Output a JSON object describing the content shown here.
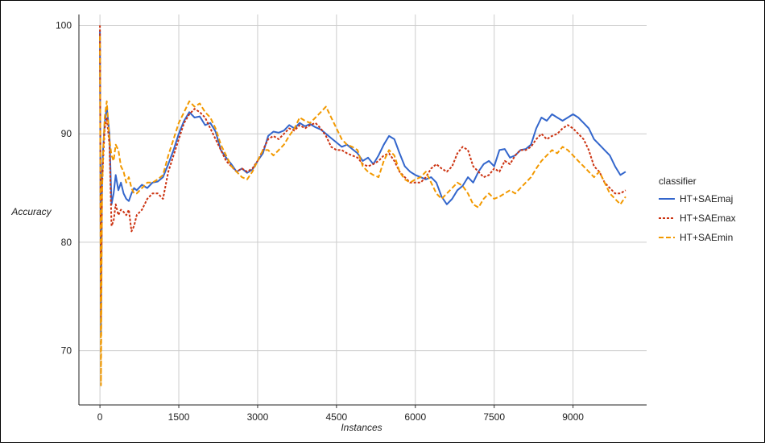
{
  "chart_data": {
    "type": "line",
    "title": "",
    "xlabel": "Instances",
    "ylabel": "Accuracy",
    "xlim": [
      -400,
      10400
    ],
    "ylim": [
      65,
      101
    ],
    "xticks": [
      0,
      1500,
      3000,
      4500,
      6000,
      7500,
      9000
    ],
    "yticks": [
      70,
      80,
      90,
      100
    ],
    "grid": true,
    "legend": {
      "title": "classifier",
      "position": "right"
    },
    "series": [
      {
        "name": "HT+SAEmaj",
        "color": "#3366cc",
        "dash": "solid",
        "x": [
          0,
          20,
          40,
          60,
          90,
          130,
          180,
          220,
          260,
          300,
          350,
          400,
          450,
          500,
          550,
          600,
          650,
          700,
          800,
          900,
          1000,
          1100,
          1200,
          1300,
          1400,
          1500,
          1600,
          1700,
          1800,
          1900,
          2000,
          2100,
          2200,
          2300,
          2400,
          2500,
          2600,
          2700,
          2800,
          2900,
          3000,
          3100,
          3200,
          3300,
          3400,
          3500,
          3600,
          3700,
          3800,
          3900,
          4000,
          4100,
          4200,
          4300,
          4400,
          4500,
          4600,
          4700,
          4800,
          4900,
          5000,
          5100,
          5200,
          5300,
          5400,
          5500,
          5600,
          5700,
          5800,
          5900,
          6000,
          6100,
          6200,
          6300,
          6400,
          6500,
          6600,
          6700,
          6800,
          6900,
          7000,
          7100,
          7200,
          7300,
          7400,
          7500,
          7600,
          7700,
          7800,
          7900,
          8000,
          8100,
          8200,
          8300,
          8400,
          8500,
          8600,
          8700,
          8800,
          8900,
          9000,
          9100,
          9200,
          9300,
          9400,
          9500,
          9600,
          9700,
          9800,
          9900,
          10000
        ],
        "values": [
          99.5,
          71.5,
          86.0,
          88.5,
          91.0,
          92.5,
          90.0,
          83.5,
          84.5,
          86.2,
          84.8,
          85.5,
          84.5,
          84.0,
          83.8,
          84.5,
          85.0,
          84.8,
          85.3,
          85.0,
          85.5,
          85.6,
          86.0,
          87.2,
          88.5,
          90.0,
          91.2,
          92.0,
          91.5,
          91.6,
          90.8,
          91.0,
          90.2,
          88.5,
          87.8,
          87.2,
          86.5,
          86.8,
          86.4,
          86.7,
          87.5,
          88.2,
          89.8,
          90.2,
          90.1,
          90.3,
          90.8,
          90.5,
          91.0,
          90.7,
          90.9,
          90.6,
          90.4,
          90.0,
          89.6,
          89.2,
          88.8,
          89.0,
          88.6,
          88.2,
          87.5,
          87.8,
          87.2,
          88.0,
          89.0,
          89.8,
          89.5,
          88.2,
          87.0,
          86.5,
          86.2,
          86.0,
          85.8,
          86.0,
          85.5,
          84.2,
          83.5,
          84.0,
          84.8,
          85.2,
          86.0,
          85.5,
          86.5,
          87.2,
          87.5,
          87.0,
          88.5,
          88.6,
          87.8,
          88.0,
          88.5,
          88.6,
          89.0,
          90.5,
          91.5,
          91.2,
          91.8,
          91.5,
          91.2,
          91.5,
          91.8,
          91.5,
          91.0,
          90.5,
          89.5,
          89.0,
          88.5,
          88.0,
          87.0,
          86.2,
          86.5
        ]
      },
      {
        "name": "HT+SAEmax",
        "color": "#cc3311",
        "dash": "dashed",
        "x": [
          0,
          20,
          40,
          60,
          90,
          130,
          180,
          220,
          260,
          300,
          350,
          400,
          450,
          500,
          550,
          600,
          650,
          700,
          800,
          900,
          1000,
          1100,
          1200,
          1300,
          1400,
          1500,
          1600,
          1700,
          1800,
          1900,
          2000,
          2100,
          2200,
          2300,
          2400,
          2500,
          2600,
          2700,
          2800,
          2900,
          3000,
          3100,
          3200,
          3300,
          3400,
          3500,
          3600,
          3700,
          3800,
          3900,
          4000,
          4100,
          4200,
          4300,
          4400,
          4500,
          4600,
          4700,
          4800,
          4900,
          5000,
          5100,
          5200,
          5300,
          5400,
          5500,
          5600,
          5700,
          5800,
          5900,
          6000,
          6100,
          6200,
          6300,
          6400,
          6500,
          6600,
          6700,
          6800,
          6900,
          7000,
          7100,
          7200,
          7300,
          7400,
          7500,
          7600,
          7700,
          7800,
          7900,
          8000,
          8100,
          8200,
          8300,
          8400,
          8500,
          8600,
          8700,
          8800,
          8900,
          9000,
          9100,
          9200,
          9300,
          9400,
          9500,
          9600,
          9700,
          9800,
          9900,
          10000
        ],
        "values": [
          100.0,
          73.0,
          85.0,
          87.5,
          90.5,
          91.5,
          89.0,
          81.5,
          82.0,
          83.5,
          82.5,
          83.0,
          82.8,
          82.5,
          83.0,
          81.0,
          81.5,
          82.5,
          83.0,
          84.0,
          84.5,
          84.5,
          84.0,
          86.5,
          88.0,
          89.5,
          91.0,
          91.8,
          92.3,
          92.0,
          91.5,
          90.5,
          89.5,
          88.5,
          87.5,
          87.0,
          86.5,
          86.8,
          86.5,
          86.8,
          87.5,
          88.5,
          89.5,
          89.8,
          89.5,
          90.0,
          90.5,
          90.3,
          90.8,
          90.5,
          90.8,
          91.0,
          90.5,
          89.8,
          88.8,
          88.5,
          88.5,
          88.2,
          88.0,
          87.8,
          87.2,
          87.0,
          87.2,
          87.5,
          88.0,
          88.2,
          87.5,
          86.5,
          86.0,
          85.5,
          85.5,
          85.5,
          86.0,
          86.8,
          87.2,
          86.8,
          86.5,
          87.0,
          88.2,
          88.8,
          88.5,
          87.0,
          86.5,
          86.0,
          86.2,
          86.8,
          86.5,
          87.5,
          87.2,
          88.0,
          88.5,
          88.5,
          88.8,
          89.5,
          90.0,
          89.5,
          89.8,
          90.0,
          90.5,
          90.8,
          90.5,
          90.0,
          89.5,
          88.5,
          87.0,
          86.5,
          85.5,
          85.0,
          84.5,
          84.5,
          84.8
        ]
      },
      {
        "name": "HT+SAEmin",
        "color": "#f29900",
        "dash": "dashed",
        "x": [
          0,
          20,
          40,
          60,
          90,
          130,
          180,
          220,
          260,
          300,
          350,
          400,
          450,
          500,
          550,
          600,
          650,
          700,
          800,
          900,
          1000,
          1100,
          1200,
          1300,
          1400,
          1500,
          1600,
          1700,
          1800,
          1900,
          2000,
          2100,
          2200,
          2300,
          2400,
          2500,
          2600,
          2700,
          2800,
          2900,
          3000,
          3100,
          3200,
          3300,
          3400,
          3500,
          3600,
          3700,
          3800,
          3900,
          4000,
          4100,
          4200,
          4300,
          4400,
          4500,
          4600,
          4700,
          4800,
          4900,
          5000,
          5100,
          5200,
          5300,
          5400,
          5500,
          5600,
          5700,
          5800,
          5900,
          6000,
          6100,
          6200,
          6300,
          6400,
          6500,
          6600,
          6700,
          6800,
          6900,
          7000,
          7100,
          7200,
          7300,
          7400,
          7500,
          7600,
          7700,
          7800,
          7900,
          8000,
          8100,
          8200,
          8300,
          8400,
          8500,
          8600,
          8700,
          8800,
          8900,
          9000,
          9100,
          9200,
          9300,
          9400,
          9500,
          9600,
          9700,
          9800,
          9900,
          10000
        ],
        "values": [
          99.0,
          66.8,
          84.5,
          88.0,
          91.5,
          93.0,
          89.5,
          88.0,
          87.5,
          89.0,
          88.5,
          87.0,
          86.5,
          85.5,
          86.0,
          85.0,
          84.5,
          84.5,
          85.0,
          85.5,
          85.5,
          85.8,
          86.2,
          88.0,
          89.5,
          91.0,
          92.0,
          93.0,
          92.5,
          92.8,
          92.0,
          91.5,
          90.5,
          89.0,
          88.0,
          87.0,
          86.5,
          86.0,
          85.8,
          86.5,
          87.5,
          88.5,
          88.5,
          88.0,
          88.5,
          89.0,
          89.8,
          90.5,
          91.5,
          91.2,
          91.0,
          91.5,
          92.0,
          92.5,
          91.5,
          90.5,
          89.5,
          89.0,
          88.8,
          88.5,
          87.0,
          86.5,
          86.2,
          86.0,
          87.5,
          88.5,
          88.0,
          86.5,
          85.8,
          85.5,
          85.8,
          86.0,
          86.5,
          85.5,
          84.5,
          84.0,
          84.5,
          85.0,
          85.5,
          85.2,
          84.5,
          83.5,
          83.2,
          84.0,
          84.5,
          84.0,
          84.2,
          84.5,
          84.8,
          84.5,
          85.0,
          85.5,
          86.0,
          86.8,
          87.5,
          88.0,
          88.5,
          88.2,
          88.8,
          88.5,
          88.0,
          87.5,
          87.0,
          86.5,
          86.0,
          86.5,
          85.5,
          84.5,
          84.0,
          83.5,
          84.2
        ]
      }
    ]
  }
}
